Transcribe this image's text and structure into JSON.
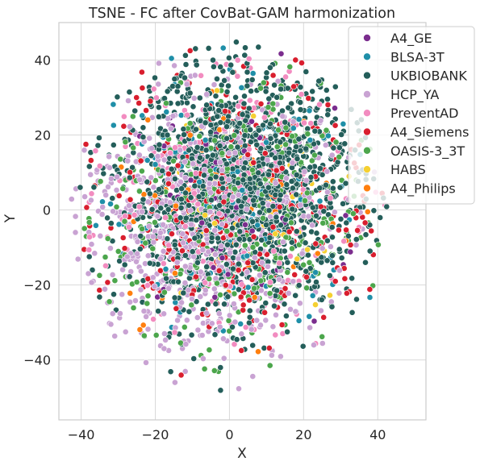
{
  "chart_data": {
    "type": "scatter",
    "title": "TSNE - FC after CovBat-GAM harmonization",
    "xlabel": "X",
    "ylabel": "Y",
    "xlim": [
      -46,
      53
    ],
    "ylim": [
      -56,
      50
    ],
    "xticks": [
      -40,
      -20,
      0,
      20,
      40
    ],
    "yticks": [
      -40,
      -20,
      0,
      20,
      40
    ],
    "xtick_labels": [
      "−40",
      "−20",
      "0",
      "20",
      "40"
    ],
    "ytick_labels": [
      "−40",
      "−20",
      "0",
      "20",
      "40"
    ],
    "grid": true,
    "legend_position": "top-right",
    "series": [
      {
        "name": "A4_GE",
        "color": "#7b2d8e",
        "n": 70,
        "cx": 0,
        "cy": 0,
        "sd": 14
      },
      {
        "name": "BLSA-3T",
        "color": "#1f8fa8",
        "n": 140,
        "cx": 2,
        "cy": 5,
        "sd": 18
      },
      {
        "name": "UKBIOBANK",
        "color": "#245e5a",
        "n": 1500,
        "cx": 3,
        "cy": 5,
        "sd": 16
      },
      {
        "name": "HCP_YA",
        "color": "#c9a3d3",
        "n": 700,
        "cx": -8,
        "cy": -5,
        "sd": 17
      },
      {
        "name": "PreventAD",
        "color": "#f28cc0",
        "n": 200,
        "cx": -5,
        "cy": 5,
        "sd": 18
      },
      {
        "name": "A4_Siemens",
        "color": "#d91e2e",
        "n": 320,
        "cx": 3,
        "cy": 2,
        "sd": 18
      },
      {
        "name": "OASIS-3_3T",
        "color": "#4ca64c",
        "n": 380,
        "cx": 2,
        "cy": -2,
        "sd": 17
      },
      {
        "name": "HABS",
        "color": "#f5d031",
        "n": 50,
        "cx": 5,
        "cy": 5,
        "sd": 16
      },
      {
        "name": "A4_Philips",
        "color": "#ff7f0e",
        "n": 70,
        "cx": 3,
        "cy": 3,
        "sd": 16
      }
    ]
  }
}
